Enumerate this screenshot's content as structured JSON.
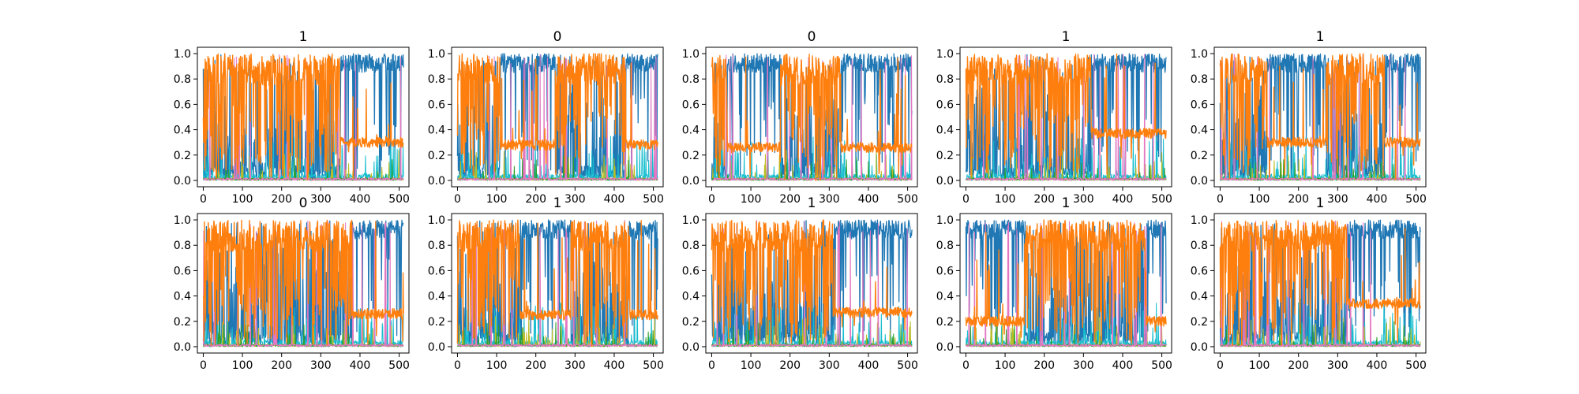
{
  "figure": {
    "background": "#ffffff",
    "rows": 2,
    "cols": 5
  },
  "chart_data": [
    {
      "type": "line",
      "title": "1",
      "xlim": [
        -15,
        525
      ],
      "ylim": [
        -0.05,
        1.05
      ],
      "x_ticks": [
        0,
        100,
        200,
        300,
        400,
        500
      ],
      "y_ticks": [
        0.0,
        0.2,
        0.4,
        0.6,
        0.8,
        1.0
      ],
      "x_tick_labels": [
        "0",
        "100",
        "200",
        "300",
        "400",
        "500"
      ],
      "y_tick_labels": [
        "0.0",
        "0.2",
        "0.4",
        "0.6",
        "0.8",
        "1.0"
      ],
      "n_points": 512,
      "orange_dominant_ranges": [
        [
          0,
          350
        ]
      ],
      "blue_dominant_ranges": [
        [
          350,
          511
        ]
      ],
      "orange_level_in_blue_regions": 0.3,
      "series_colors": [
        "#1f77b4",
        "#ff7f0e",
        "#17becf",
        "#bcbd22",
        "#2ca02c",
        "#e377c2"
      ]
    },
    {
      "type": "line",
      "title": "0",
      "xlim": [
        -15,
        525
      ],
      "ylim": [
        -0.05,
        1.05
      ],
      "x_ticks": [
        0,
        100,
        200,
        300,
        400,
        500
      ],
      "y_ticks": [
        0.0,
        0.2,
        0.4,
        0.6,
        0.8,
        1.0
      ],
      "x_tick_labels": [
        "0",
        "100",
        "200",
        "300",
        "400",
        "500"
      ],
      "y_tick_labels": [
        "0.0",
        "0.2",
        "0.4",
        "0.6",
        "0.8",
        "1.0"
      ],
      "n_points": 512,
      "orange_dominant_ranges": [
        [
          0,
          110
        ],
        [
          250,
          430
        ]
      ],
      "blue_dominant_ranges": [
        [
          110,
          250
        ],
        [
          430,
          511
        ]
      ],
      "orange_level_in_blue_regions": 0.28,
      "series_colors": [
        "#1f77b4",
        "#ff7f0e",
        "#17becf",
        "#bcbd22",
        "#2ca02c",
        "#e377c2"
      ]
    },
    {
      "type": "line",
      "title": "0",
      "xlim": [
        -15,
        525
      ],
      "ylim": [
        -0.05,
        1.05
      ],
      "x_ticks": [
        0,
        100,
        200,
        300,
        400,
        500
      ],
      "y_ticks": [
        0.0,
        0.2,
        0.4,
        0.6,
        0.8,
        1.0
      ],
      "x_tick_labels": [
        "0",
        "100",
        "200",
        "300",
        "400",
        "500"
      ],
      "y_tick_labels": [
        "0.0",
        "0.2",
        "0.4",
        "0.6",
        "0.8",
        "1.0"
      ],
      "n_points": 512,
      "orange_dominant_ranges": [
        [
          0,
          40
        ],
        [
          175,
          330
        ]
      ],
      "blue_dominant_ranges": [
        [
          40,
          175
        ],
        [
          330,
          511
        ]
      ],
      "orange_level_in_blue_regions": 0.26,
      "series_colors": [
        "#1f77b4",
        "#ff7f0e",
        "#17becf",
        "#bcbd22",
        "#2ca02c",
        "#e377c2"
      ]
    },
    {
      "type": "line",
      "title": "1",
      "xlim": [
        -15,
        525
      ],
      "ylim": [
        -0.05,
        1.05
      ],
      "x_ticks": [
        0,
        100,
        200,
        300,
        400,
        500
      ],
      "y_ticks": [
        0.0,
        0.2,
        0.4,
        0.6,
        0.8,
        1.0
      ],
      "x_tick_labels": [
        "0",
        "100",
        "200",
        "300",
        "400",
        "500"
      ],
      "y_tick_labels": [
        "0.0",
        "0.2",
        "0.4",
        "0.6",
        "0.8",
        "1.0"
      ],
      "n_points": 512,
      "orange_dominant_ranges": [
        [
          0,
          320
        ]
      ],
      "blue_dominant_ranges": [
        [
          320,
          511
        ]
      ],
      "orange_level_in_blue_regions": 0.37,
      "series_colors": [
        "#1f77b4",
        "#ff7f0e",
        "#17becf",
        "#bcbd22",
        "#2ca02c",
        "#e377c2"
      ]
    },
    {
      "type": "line",
      "title": "1",
      "xlim": [
        -15,
        525
      ],
      "ylim": [
        -0.05,
        1.05
      ],
      "x_ticks": [
        0,
        100,
        200,
        300,
        400,
        500
      ],
      "y_ticks": [
        0.0,
        0.2,
        0.4,
        0.6,
        0.8,
        1.0
      ],
      "x_tick_labels": [
        "0",
        "100",
        "200",
        "300",
        "400",
        "500"
      ],
      "y_tick_labels": [
        "0.0",
        "0.2",
        "0.4",
        "0.6",
        "0.8",
        "1.0"
      ],
      "n_points": 512,
      "orange_dominant_ranges": [
        [
          0,
          120
        ],
        [
          270,
          420
        ]
      ],
      "blue_dominant_ranges": [
        [
          120,
          270
        ],
        [
          420,
          511
        ]
      ],
      "orange_level_in_blue_regions": 0.3,
      "series_colors": [
        "#1f77b4",
        "#ff7f0e",
        "#17becf",
        "#bcbd22",
        "#2ca02c",
        "#e377c2"
      ]
    },
    {
      "type": "line",
      "title": "0",
      "xlim": [
        -15,
        525
      ],
      "ylim": [
        -0.05,
        1.05
      ],
      "x_ticks": [
        0,
        100,
        200,
        300,
        400,
        500
      ],
      "y_ticks": [
        0.0,
        0.2,
        0.4,
        0.6,
        0.8,
        1.0
      ],
      "x_tick_labels": [
        "0",
        "100",
        "200",
        "300",
        "400",
        "500"
      ],
      "y_tick_labels": [
        "0.0",
        "0.2",
        "0.4",
        "0.6",
        "0.8",
        "1.0"
      ],
      "n_points": 512,
      "orange_dominant_ranges": [
        [
          0,
          380
        ]
      ],
      "blue_dominant_ranges": [
        [
          380,
          511
        ]
      ],
      "orange_level_in_blue_regions": 0.26,
      "series_colors": [
        "#1f77b4",
        "#ff7f0e",
        "#17becf",
        "#bcbd22",
        "#2ca02c",
        "#e377c2"
      ]
    },
    {
      "type": "line",
      "title": "1",
      "xlim": [
        -15,
        525
      ],
      "ylim": [
        -0.05,
        1.05
      ],
      "x_ticks": [
        0,
        100,
        200,
        300,
        400,
        500
      ],
      "y_ticks": [
        0.0,
        0.2,
        0.4,
        0.6,
        0.8,
        1.0
      ],
      "x_tick_labels": [
        "0",
        "100",
        "200",
        "300",
        "400",
        "500"
      ],
      "y_tick_labels": [
        "0.0",
        "0.2",
        "0.4",
        "0.6",
        "0.8",
        "1.0"
      ],
      "n_points": 512,
      "orange_dominant_ranges": [
        [
          0,
          160
        ],
        [
          290,
          440
        ]
      ],
      "blue_dominant_ranges": [
        [
          160,
          290
        ],
        [
          440,
          511
        ]
      ],
      "orange_level_in_blue_regions": 0.25,
      "series_colors": [
        "#1f77b4",
        "#ff7f0e",
        "#17becf",
        "#bcbd22",
        "#2ca02c",
        "#e377c2"
      ]
    },
    {
      "type": "line",
      "title": "1",
      "xlim": [
        -15,
        525
      ],
      "ylim": [
        -0.05,
        1.05
      ],
      "x_ticks": [
        0,
        100,
        200,
        300,
        400,
        500
      ],
      "y_ticks": [
        0.0,
        0.2,
        0.4,
        0.6,
        0.8,
        1.0
      ],
      "x_tick_labels": [
        "0",
        "100",
        "200",
        "300",
        "400",
        "500"
      ],
      "y_tick_labels": [
        "0.0",
        "0.2",
        "0.4",
        "0.6",
        "0.8",
        "1.0"
      ],
      "n_points": 512,
      "orange_dominant_ranges": [
        [
          0,
          310
        ]
      ],
      "blue_dominant_ranges": [
        [
          310,
          511
        ]
      ],
      "orange_level_in_blue_regions": 0.27,
      "series_colors": [
        "#1f77b4",
        "#ff7f0e",
        "#17becf",
        "#bcbd22",
        "#2ca02c",
        "#e377c2"
      ]
    },
    {
      "type": "line",
      "title": "1",
      "xlim": [
        -15,
        525
      ],
      "ylim": [
        -0.05,
        1.05
      ],
      "x_ticks": [
        0,
        100,
        200,
        300,
        400,
        500
      ],
      "y_ticks": [
        0.0,
        0.2,
        0.4,
        0.6,
        0.8,
        1.0
      ],
      "x_tick_labels": [
        "0",
        "100",
        "200",
        "300",
        "400",
        "500"
      ],
      "y_tick_labels": [
        "0.0",
        "0.2",
        "0.4",
        "0.6",
        "0.8",
        "1.0"
      ],
      "n_points": 512,
      "orange_dominant_ranges": [
        [
          150,
          460
        ]
      ],
      "blue_dominant_ranges": [
        [
          0,
          150
        ],
        [
          460,
          511
        ]
      ],
      "orange_level_in_blue_regions": 0.2,
      "series_colors": [
        "#1f77b4",
        "#ff7f0e",
        "#17becf",
        "#bcbd22",
        "#2ca02c",
        "#e377c2"
      ]
    },
    {
      "type": "line",
      "title": "1",
      "xlim": [
        -15,
        525
      ],
      "ylim": [
        -0.05,
        1.05
      ],
      "x_ticks": [
        0,
        100,
        200,
        300,
        400,
        500
      ],
      "y_ticks": [
        0.0,
        0.2,
        0.4,
        0.6,
        0.8,
        1.0
      ],
      "x_tick_labels": [
        "0",
        "100",
        "200",
        "300",
        "400",
        "500"
      ],
      "y_tick_labels": [
        "0.0",
        "0.2",
        "0.4",
        "0.6",
        "0.8",
        "1.0"
      ],
      "n_points": 512,
      "orange_dominant_ranges": [
        [
          0,
          325
        ]
      ],
      "blue_dominant_ranges": [
        [
          325,
          511
        ]
      ],
      "orange_level_in_blue_regions": 0.34,
      "series_colors": [
        "#1f77b4",
        "#ff7f0e",
        "#17becf",
        "#bcbd22",
        "#2ca02c",
        "#e377c2"
      ]
    }
  ]
}
